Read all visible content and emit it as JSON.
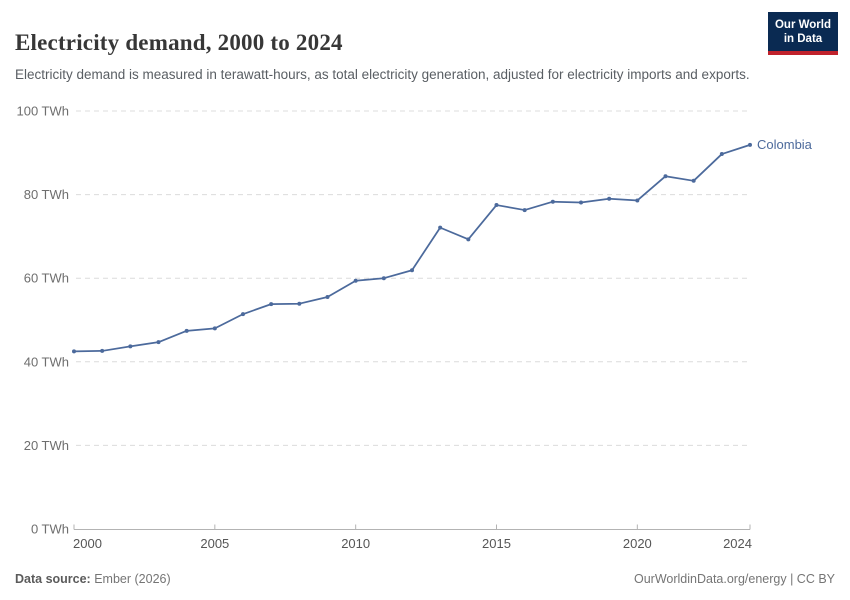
{
  "header": {
    "title": "Electricity demand, 2000 to 2024",
    "subtitle": "Electricity demand is measured in terawatt-hours, as total electricity generation, adjusted for electricity imports and exports.",
    "logo": {
      "line1": "Our World",
      "line2": "in Data",
      "bg_color": "#0a2a52",
      "accent_color": "#c0222c"
    }
  },
  "chart_data": {
    "type": "line",
    "title": "Electricity demand, 2000 to 2024",
    "unit": "TWh",
    "xlabel": "",
    "ylabel": "",
    "xlim": [
      2000,
      2024
    ],
    "ylim": [
      0,
      100
    ],
    "grid": "horizontal-dashed",
    "legend_position": "end-of-line",
    "x_ticks": [
      2000,
      2005,
      2010,
      2015,
      2020,
      2024
    ],
    "y_ticks": [
      {
        "value": 0,
        "label": "0 TWh"
      },
      {
        "value": 20,
        "label": "20 TWh"
      },
      {
        "value": 40,
        "label": "40 TWh"
      },
      {
        "value": 60,
        "label": "60 TWh"
      },
      {
        "value": 80,
        "label": "80 TWh"
      },
      {
        "value": 100,
        "label": "100 TWh"
      }
    ],
    "series": [
      {
        "name": "Colombia",
        "color": "#4c6a9c",
        "x": [
          2000,
          2001,
          2002,
          2003,
          2004,
          2005,
          2006,
          2007,
          2008,
          2009,
          2010,
          2011,
          2012,
          2013,
          2014,
          2015,
          2016,
          2017,
          2018,
          2019,
          2020,
          2021,
          2022,
          2023,
          2024
        ],
        "values": [
          42.5,
          42.6,
          43.7,
          44.7,
          47.4,
          48.0,
          51.4,
          53.8,
          53.9,
          55.5,
          59.4,
          60.0,
          61.9,
          72.1,
          69.3,
          77.5,
          76.3,
          78.3,
          78.1,
          79.0,
          78.6,
          84.4,
          83.3,
          89.7,
          91.9
        ]
      }
    ]
  },
  "footer": {
    "source_label": "Data source:",
    "source_value": " Ember (2026)",
    "credit": "OurWorldinData.org/energy | CC BY"
  }
}
